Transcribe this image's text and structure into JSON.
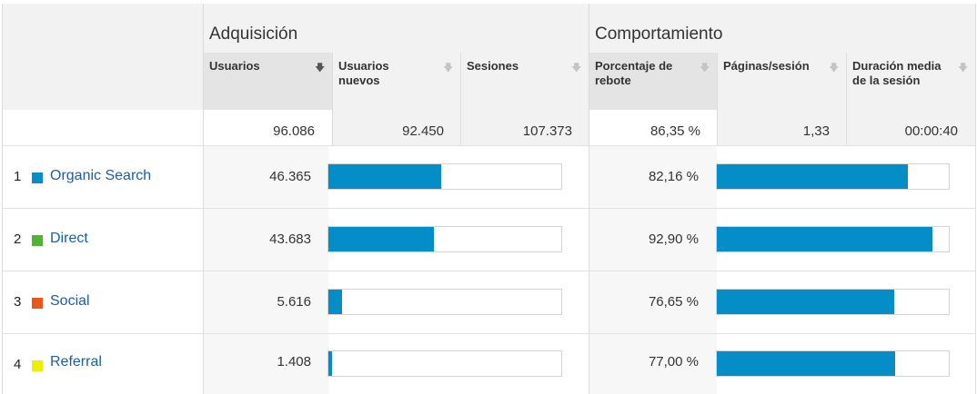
{
  "groups": {
    "acquisition": "Adquisición",
    "behavior": "Comportamiento"
  },
  "columns": {
    "users": "Usuarios",
    "new_users": "Usuarios nuevos",
    "sessions": "Sesiones",
    "bounce_rate": "Porcentaje de rebote",
    "pages_per_session": "Páginas/sesión",
    "avg_duration": "Duración media de la sesión"
  },
  "sort_icon": "sort-down-arrow",
  "totals": {
    "users": "96.086",
    "new_users": "92.450",
    "sessions": "107.373",
    "bounce_rate": "86,35 %",
    "pages_per_session": "1,33",
    "avg_duration": "00:00:40"
  },
  "rows": [
    {
      "index": "1",
      "label": "Organic Search",
      "color": "#058dc7",
      "users": "46.365",
      "users_share": 0.4825,
      "bounce": "82,16 %",
      "bounce_fraction": 0.8216
    },
    {
      "index": "2",
      "label": "Direct",
      "color": "#50b432",
      "users": "43.683",
      "users_share": 0.4546,
      "bounce": "92,90 %",
      "bounce_fraction": 0.929
    },
    {
      "index": "3",
      "label": "Social",
      "color": "#ed561b",
      "users": "5.616",
      "users_share": 0.0584,
      "bounce": "76,65 %",
      "bounce_fraction": 0.7665
    },
    {
      "index": "4",
      "label": "Referral",
      "color": "#edef00",
      "users": "1.408",
      "users_share": 0.0147,
      "bounce": "77,00 %",
      "bounce_fraction": 0.77
    }
  ],
  "bar_color": "#058dc7"
}
